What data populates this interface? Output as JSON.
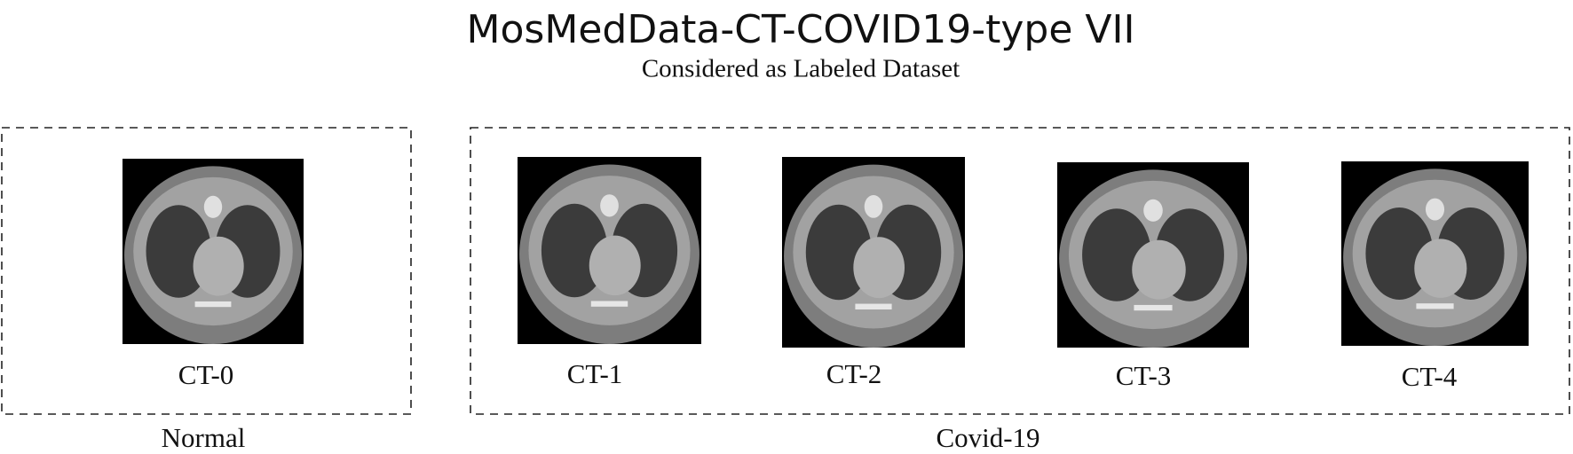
{
  "header": {
    "title": "MosMedData-CT-COVID19-type VII",
    "subtitle": "Considered as Labeled Dataset"
  },
  "groups": [
    {
      "label": "Normal",
      "images": [
        {
          "label": "CT-0"
        }
      ]
    },
    {
      "label": "Covid-19",
      "images": [
        {
          "label": "CT-1"
        },
        {
          "label": "CT-2"
        },
        {
          "label": "CT-3"
        },
        {
          "label": "CT-4"
        }
      ]
    }
  ]
}
